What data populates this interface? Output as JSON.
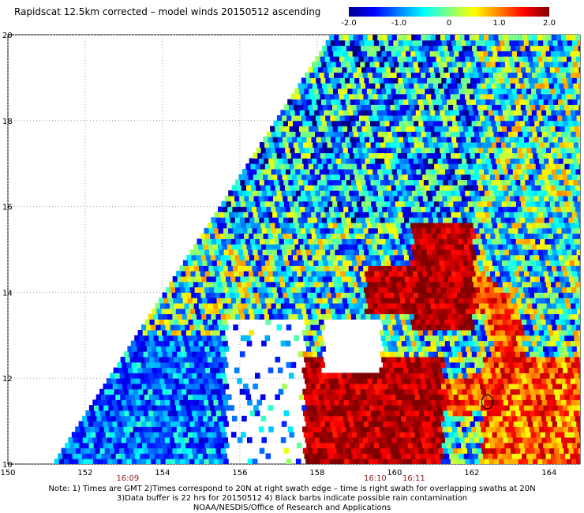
{
  "title": "Rapidscat 12.5km corrected – model winds 20150512 ascending",
  "colorbar": {
    "min": -2.0,
    "max": 2.0,
    "ticks": [
      "-2.0",
      "-1.0",
      "0",
      "1.0",
      "2.0"
    ],
    "colormap": "jet (dark blue → cyan → yellow → dark red)"
  },
  "chart_data": {
    "type": "heatmap",
    "title": "Rapidscat 12.5km corrected – model winds 20150512 ascending",
    "x_ticks": [
      "150",
      "152",
      "154",
      "156",
      "158",
      "160",
      "162",
      "164"
    ],
    "y_ticks": [
      "10",
      "12",
      "14",
      "16",
      "18",
      "20"
    ],
    "xlim": [
      150,
      164.8
    ],
    "ylim": [
      10,
      20
    ],
    "grid": "dotted",
    "value_range": [
      -2.0,
      2.0
    ],
    "swath": "diagonal ascending swath, SW to NE",
    "time_labels": [
      {
        "text": "16:09",
        "lon": 153.1
      },
      {
        "text": "16:10",
        "lon": 159.5
      },
      {
        "text": "16:11",
        "lon": 160.5
      }
    ],
    "regions": [
      {
        "name": "mostly negative (blue)",
        "range": "west/north swath interior"
      },
      {
        "name": "strong positive (dark red)",
        "range": "lon 157.5–161, lat 10–12.5 and lon 160–162, lat 13–15.5"
      },
      {
        "name": "mixed cyan/green/yellow",
        "range": "swath edges"
      }
    ]
  },
  "footer": {
    "line1": "Note: 1) Times are GMT 2)Times correspond to 20N at right swath edge – time is right swath for overlapping swaths at 20N",
    "line2": "3)Data buffer is 22 hrs for 20150512 4) Black barbs indicate possible rain contamination",
    "line3": "NOAA/NESDIS/Office of Research and Applications"
  },
  "colors": {
    "time_label": "#8b1a1a",
    "grid": "#999999"
  }
}
